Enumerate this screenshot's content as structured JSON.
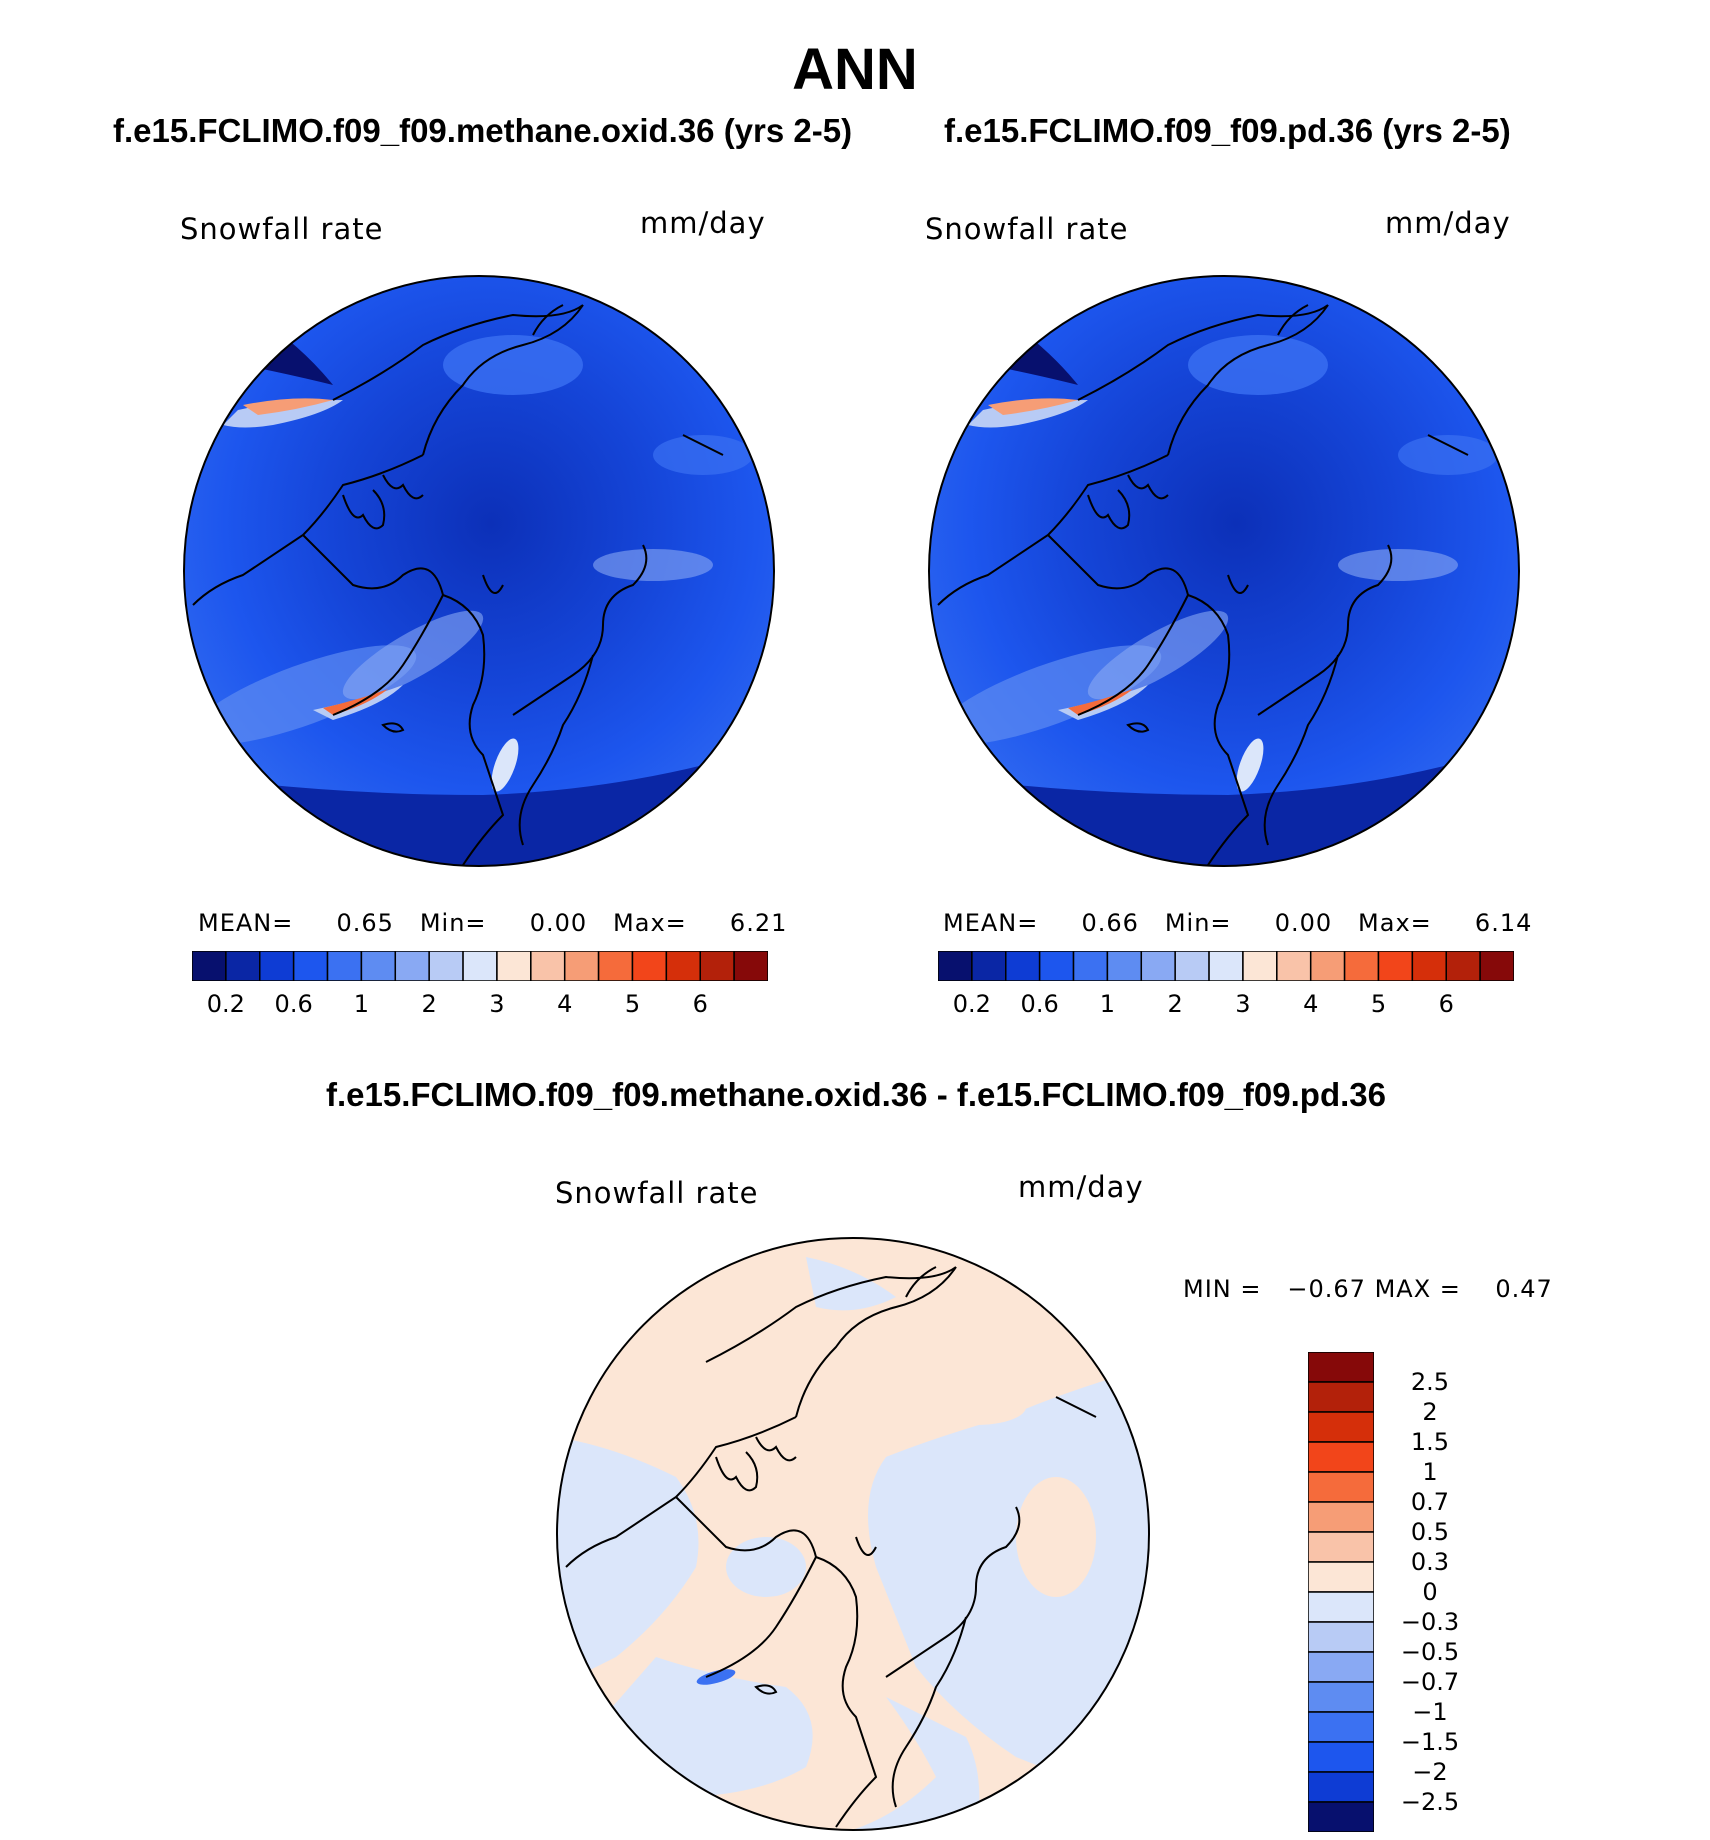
{
  "season": "ANN",
  "panels": [
    {
      "title": "f.e15.FCLIMO.f09_f09.methane.oxid.36 (yrs 2-5)",
      "variable": "Snowfall rate",
      "units": "mm/day",
      "mean_label": "MEAN=",
      "mean": "0.65",
      "min_label": "Min=",
      "min": "0.00",
      "max_label": "Max=",
      "max": "6.21"
    },
    {
      "title": "f.e15.FCLIMO.f09_f09.pd.36 (yrs 2-5)",
      "variable": "Snowfall rate",
      "units": "mm/day",
      "mean_label": "MEAN=",
      "mean": "0.66",
      "min_label": "Min=",
      "min": "0.00",
      "max_label": "Max=",
      "max": "6.14"
    }
  ],
  "diff_panel": {
    "title": "f.e15.FCLIMO.f09_f09.methane.oxid.36 - f.e15.FCLIMO.f09_f09.pd.36",
    "variable": "Snowfall rate",
    "units": "mm/day",
    "min_label": "MIN =",
    "min": "−0.67",
    "max_label": "MAX =",
    "max": "0.47"
  },
  "colorbar_abs": {
    "ticks": [
      "0.2",
      "0.6",
      "1",
      "2",
      "3",
      "4",
      "5",
      "6"
    ],
    "colors": [
      "#07106e",
      "#0a26a5",
      "#0e3cd4",
      "#1d56ee",
      "#3b71f2",
      "#5e8cf2",
      "#89a9f3",
      "#b8cbf5",
      "#dbe6fa",
      "#fce6d6",
      "#f9c3a9",
      "#f69d76",
      "#f56b3b",
      "#f2451a",
      "#d52f0a",
      "#b3210a",
      "#860909"
    ]
  },
  "colorbar_diff": {
    "ticks": [
      "2.5",
      "2",
      "1.5",
      "1",
      "0.7",
      "0.5",
      "0.3",
      "0",
      "−0.3",
      "−0.5",
      "−0.7",
      "−1",
      "−1.5",
      "−2",
      "−2.5"
    ],
    "colors": [
      "#860909",
      "#b3210a",
      "#d52f0a",
      "#f2451a",
      "#f56b3b",
      "#f69d76",
      "#f9c3a9",
      "#fce6d6",
      "#dbe6fa",
      "#b8cbf5",
      "#89a9f3",
      "#5e8cf2",
      "#3b71f2",
      "#1d56ee",
      "#0e3cd4",
      "#07106e"
    ]
  }
}
